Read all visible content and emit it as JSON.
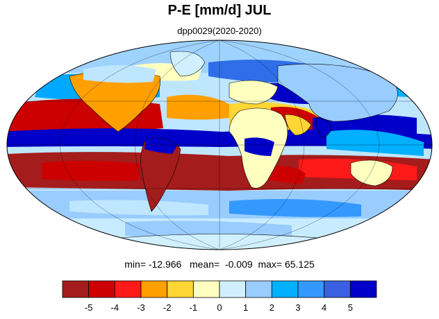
{
  "title": "P-E [mm/d] JUL",
  "subtitle": "dpp0029(2020-2020)",
  "stats": {
    "min_label": "min=",
    "min": "-12.966",
    "mean_label": "mean=",
    "mean": "-0.009",
    "max_label": "max=",
    "max": "65.125"
  },
  "colorbar": {
    "colors": [
      "#a51c1c",
      "#cc0000",
      "#ff1a1a",
      "#ff9f00",
      "#ffd633",
      "#ffffc0",
      "#d0f0ff",
      "#99ccff",
      "#00b0ff",
      "#3399ff",
      "#3a5fe0",
      "#0000c8"
    ],
    "tick_labels": [
      "-5",
      "-4",
      "-3",
      "-2",
      "-1",
      "0",
      "1",
      "2",
      "3",
      "4",
      "5"
    ]
  },
  "map": {
    "projection": "mollweide",
    "field": "precipitation minus evaporation"
  }
}
